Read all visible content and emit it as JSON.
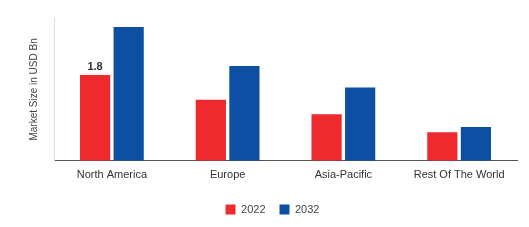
{
  "chart_data": {
    "type": "bar",
    "y_label": "Market Size in USD Bn",
    "categories": [
      "North America",
      "Europe",
      "Asia-Pacific",
      "Rest Of The World"
    ],
    "series": [
      {
        "name": "2022",
        "color": "#ee2a2e",
        "values": [
          1.8,
          1.28,
          0.98,
          0.6
        ],
        "value_labels": [
          "1.8",
          null,
          null,
          null
        ]
      },
      {
        "name": "2032",
        "color": "#0c4fa3",
        "values": [
          2.81,
          1.99,
          1.54,
          0.71
        ]
      }
    ],
    "ylim": [
      0,
      3
    ],
    "grid": false,
    "legend": "bottom",
    "tick_labels": "x"
  }
}
